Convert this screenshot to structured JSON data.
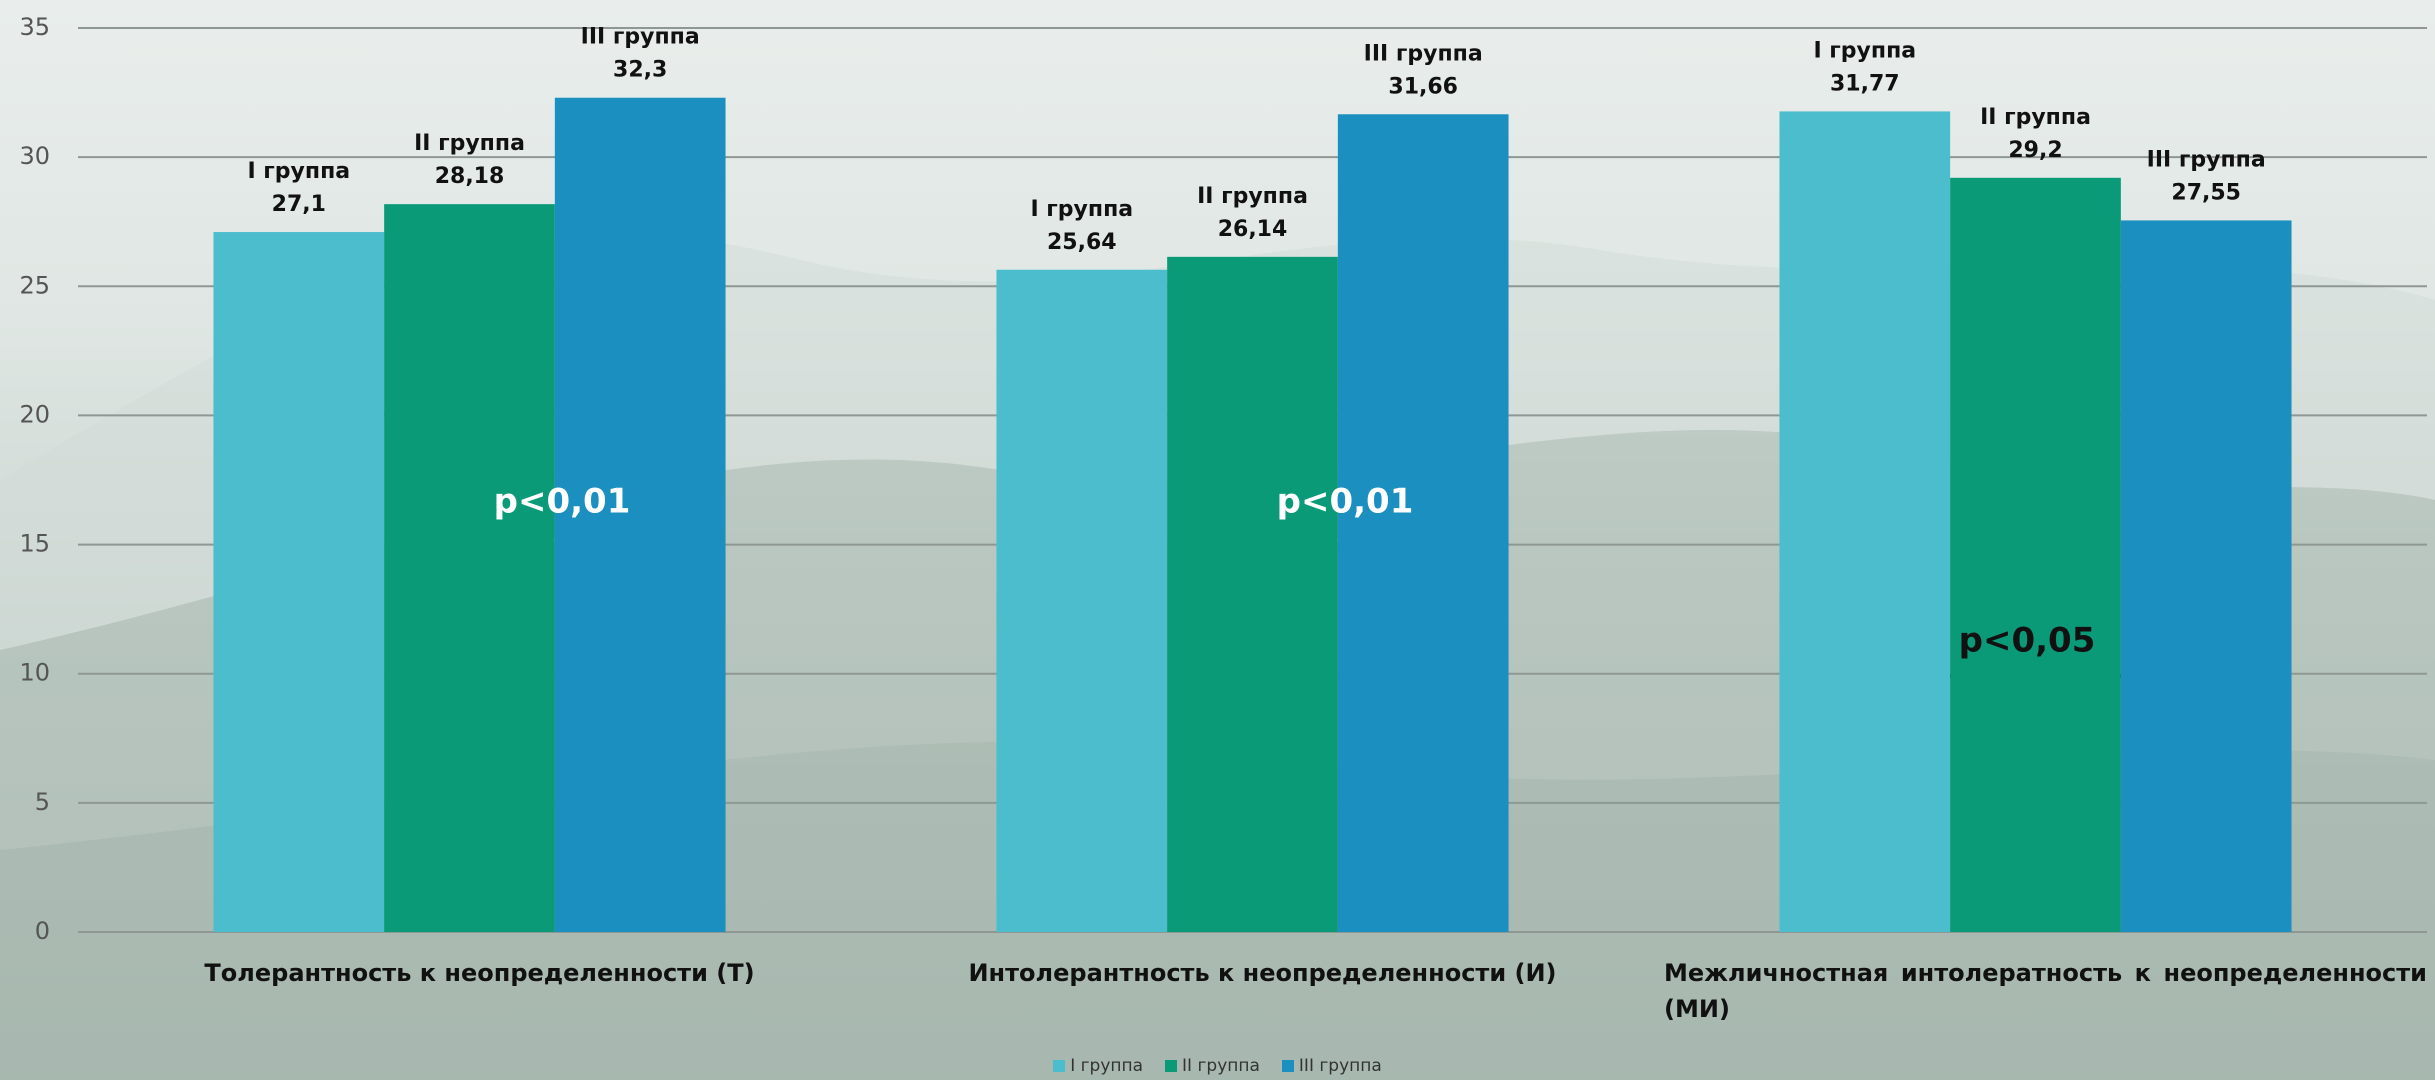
{
  "chart_data": {
    "type": "bar",
    "categories": [
      "Толерантность к неопределенности (Т)",
      "Интолерантность к неопределенности (И)",
      "Межличностная интолератность к неопределенности (МИ)"
    ],
    "series": [
      {
        "name": "I группа",
        "color": "#4cbdcd",
        "values": [
          27.1,
          25.64,
          31.77
        ],
        "value_labels": [
          "27,1",
          "25,64",
          "31,77"
        ]
      },
      {
        "name": "II группа",
        "color": "#0b9a78",
        "values": [
          28.18,
          26.14,
          29.2
        ],
        "value_labels": [
          "28,18",
          "26,14",
          "29,2"
        ]
      },
      {
        "name": "III группа",
        "color": "#1a8fc0",
        "values": [
          32.3,
          31.66,
          27.55
        ],
        "value_labels": [
          "32,3",
          "31,66",
          "27,55"
        ]
      }
    ],
    "ylim": [
      0,
      35
    ],
    "yticks": [
      0,
      5,
      10,
      15,
      20,
      25,
      30,
      35
    ],
    "grid": true,
    "legend": "bottom",
    "annotations": [
      "p<0,01",
      "p<0,01",
      "p<0,05"
    ]
  }
}
